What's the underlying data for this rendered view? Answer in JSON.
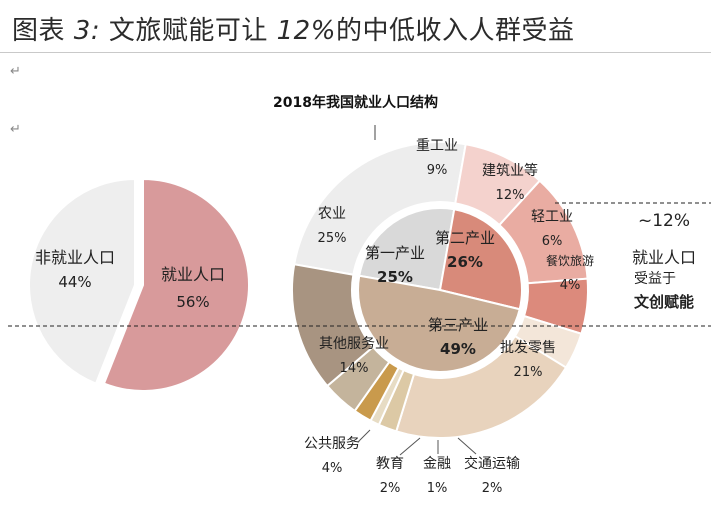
{
  "figure_title": {
    "prefix": "图表",
    "number": "3:",
    "text1": "文旅赋能可让",
    "pct": "12%",
    "text2": "的中低收入人群受益"
  },
  "chart_data": {
    "type": "pie",
    "title": "2018年我国就业人口结构",
    "employment": {
      "slices": [
        {
          "label": "非就业人口",
          "value": 44,
          "value_label": "44%",
          "color": "#eeeeee"
        },
        {
          "label": "就业人口",
          "value": 56,
          "value_label": "56%",
          "color": "#d89a9b"
        }
      ]
    },
    "sectors_inner": [
      {
        "label": "第一产业",
        "value": 25,
        "value_label": "25%",
        "color": "#d9d9d9"
      },
      {
        "label": "第二产业",
        "value": 26,
        "value_label": "26%",
        "color": "#d88a7a"
      },
      {
        "label": "第三产业",
        "value": 49,
        "value_label": "49%",
        "color": "#c8ad95"
      }
    ],
    "sectors_outer": [
      {
        "label": "农业",
        "value": 25,
        "value_label": "25%",
        "color": "#ededed"
      },
      {
        "label": "重工业",
        "value": 9,
        "value_label": "9%",
        "color": "#f4d2cd"
      },
      {
        "label": "建筑业等",
        "value": 12,
        "value_label": "12%",
        "color": "#e9aca2"
      },
      {
        "label": "轻工业",
        "value": 6,
        "value_label": "6%",
        "color": "#dc8a7c"
      },
      {
        "label": "餐饮旅游",
        "value": 4,
        "value_label": "4%",
        "color": "#f3e6d9"
      },
      {
        "label": "批发零售",
        "value": 21,
        "value_label": "21%",
        "color": "#e8d3bd"
      },
      {
        "label": "交通运输",
        "value": 2,
        "value_label": "2%",
        "color": "#dcc9a5"
      },
      {
        "label": "金融",
        "value": 1,
        "value_label": "1%",
        "color": "#e7dcc4"
      },
      {
        "label": "教育",
        "value": 2,
        "value_label": "2%",
        "color": "#c99a4c"
      },
      {
        "label": "公共服务",
        "value": 4,
        "value_label": "4%",
        "color": "#c4b49c"
      },
      {
        "label": "其他服务业",
        "value": 14,
        "value_label": "14%",
        "color": "#a89481"
      }
    ],
    "annotation": {
      "top": "~12%",
      "line1": "就业人口",
      "line2": "受益于",
      "line3": "文创赋能"
    }
  }
}
